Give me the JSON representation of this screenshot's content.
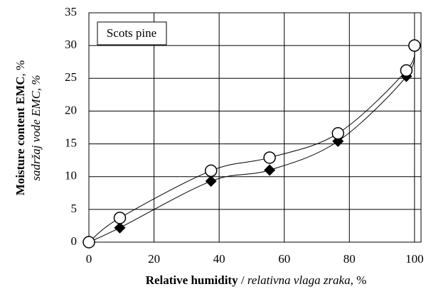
{
  "chart_data": {
    "type": "scatter",
    "annotation": "Scots pine",
    "xlabel": [
      "Relative humidity",
      " / ",
      "relativna vlaga zraka",
      ", %"
    ],
    "ylabel": [
      "Moisture content EMC",
      ", %",
      "sadržaj vode EMC, %"
    ],
    "x": [
      0,
      9.5,
      37.5,
      55.5,
      76.5,
      97.5,
      100
    ],
    "series": [
      {
        "marker": "diamond",
        "color": "#000000",
        "values": [
          0,
          2.2,
          9.3,
          11,
          15.4,
          25.3,
          30
        ]
      },
      {
        "marker": "circle",
        "color": "#000000",
        "values": [
          0,
          3.7,
          10.9,
          12.9,
          16.6,
          26.2,
          30
        ]
      }
    ],
    "xlim": [
      0,
      102
    ],
    "xticks": [
      0,
      20,
      40,
      60,
      80,
      100
    ],
    "ylim": [
      0,
      35
    ],
    "yticks": [
      0,
      5,
      10,
      15,
      20,
      25,
      30,
      35
    ],
    "grid": true
  }
}
